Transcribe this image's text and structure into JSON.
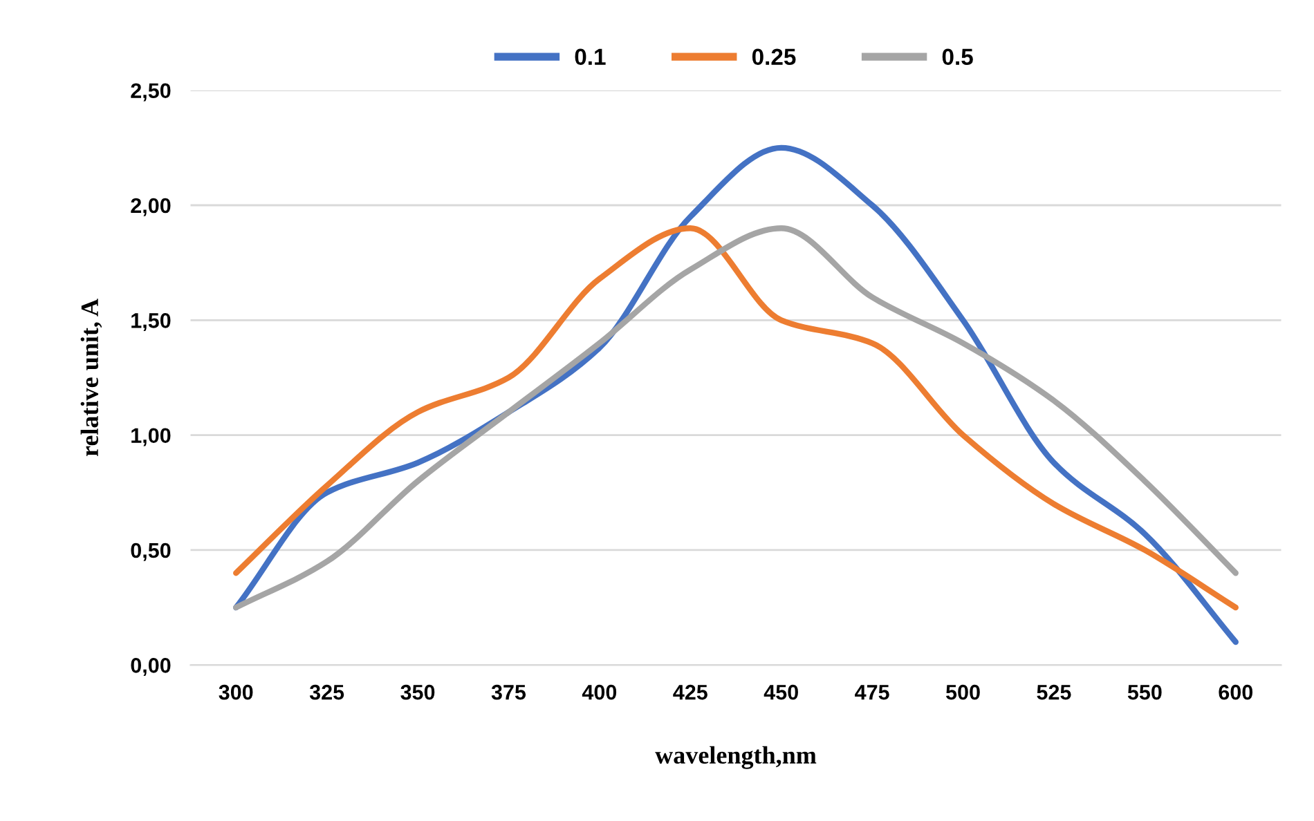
{
  "chart_data": {
    "type": "line",
    "xlabel": "wavelength,nm",
    "ylabel": "relative unit, A",
    "categories": [
      "300",
      "325",
      "350",
      "375",
      "400",
      "425",
      "450",
      "475",
      "500",
      "525",
      "550",
      "600"
    ],
    "series": [
      {
        "name": "0.1",
        "color": "#4472c4",
        "values": [
          0.25,
          0.75,
          0.88,
          1.1,
          1.38,
          1.95,
          2.25,
          2.0,
          1.5,
          0.88,
          0.57,
          0.1
        ]
      },
      {
        "name": "0.25",
        "color": "#ed7d31",
        "values": [
          0.4,
          0.78,
          1.1,
          1.25,
          1.68,
          1.9,
          1.5,
          1.4,
          1.0,
          0.7,
          0.5,
          0.25
        ]
      },
      {
        "name": "0.5",
        "color": "#a5a5a5",
        "values": [
          0.25,
          0.45,
          0.8,
          1.1,
          1.4,
          1.72,
          1.9,
          1.6,
          1.4,
          1.15,
          0.8,
          0.4
        ]
      }
    ],
    "ylim": [
      0,
      2.5
    ],
    "yticks": [
      {
        "value": 0,
        "label": "0,00"
      },
      {
        "value": 0.5,
        "label": "0,50"
      },
      {
        "value": 1,
        "label": "1,00"
      },
      {
        "value": 1.5,
        "label": "1,50"
      },
      {
        "value": 2,
        "label": "2,00"
      },
      {
        "value": 2.5,
        "label": "2,50"
      }
    ],
    "grid": "y",
    "legend": "top",
    "marker": "none",
    "line_style": "solid"
  }
}
